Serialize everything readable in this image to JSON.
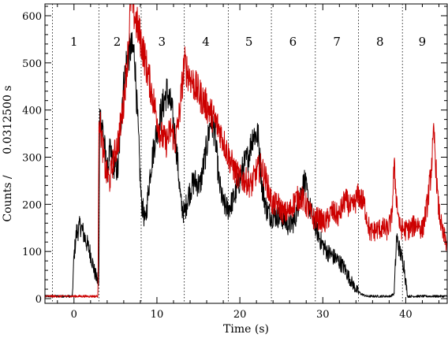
{
  "chart_data": {
    "type": "line",
    "title": "",
    "xlabel": "Time (s)",
    "ylabel": "Counts /      0.0312500 s",
    "xlim": [
      -3.5,
      45
    ],
    "ylim": [
      -10,
      625
    ],
    "x_ticks": [
      0,
      10,
      20,
      30,
      40
    ],
    "x_tick_labels": [
      "0",
      "10",
      "20",
      "30",
      "40"
    ],
    "y_ticks": [
      0,
      100,
      200,
      300,
      400,
      500,
      600
    ],
    "y_tick_labels": [
      "0",
      "100",
      "200",
      "300",
      "400",
      "500",
      "600"
    ],
    "grid": false,
    "segment_boundaries": [
      -2.6,
      3.0,
      8.1,
      13.3,
      18.6,
      23.8,
      29.1,
      34.3,
      39.6
    ],
    "segment_labels": [
      {
        "x": 0.0,
        "label": "1"
      },
      {
        "x": 5.2,
        "label": "2"
      },
      {
        "x": 10.6,
        "label": "3"
      },
      {
        "x": 15.9,
        "label": "4"
      },
      {
        "x": 21.1,
        "label": "5"
      },
      {
        "x": 26.4,
        "label": "6"
      },
      {
        "x": 31.7,
        "label": "7"
      },
      {
        "x": 36.9,
        "label": "8"
      },
      {
        "x": 42.0,
        "label": "9"
      }
    ],
    "series": [
      {
        "color": "#000000",
        "x": [
          -3.5,
          -0.2,
          0.0,
          0.3,
          0.8,
          1.4,
          2.0,
          2.5,
          3.0,
          3.1,
          3.5,
          4.0,
          4.3,
          4.8,
          5.3,
          5.8,
          6.3,
          6.8,
          7.3,
          7.8,
          8.1,
          8.6,
          9.2,
          9.8,
          10.5,
          11.2,
          11.8,
          12.4,
          12.9,
          13.3,
          13.8,
          14.5,
          15.2,
          15.9,
          16.5,
          17.0,
          17.5,
          18.0,
          18.6,
          19.2,
          19.8,
          20.4,
          21.0,
          21.6,
          22.2,
          22.7,
          23.2,
          23.8,
          24.5,
          25.2,
          25.9,
          26.6,
          27.2,
          27.8,
          28.4,
          29.1,
          29.8,
          30.5,
          31.2,
          31.9,
          32.6,
          33.3,
          34.0,
          34.6,
          35.3,
          36.0,
          36.7,
          37.4,
          38.1,
          38.6,
          38.9,
          39.3,
          39.8,
          40.2,
          41.0,
          43.0,
          45.0
        ],
        "y": [
          5,
          5,
          90,
          140,
          155,
          125,
          95,
          55,
          30,
          390,
          360,
          260,
          310,
          285,
          270,
          420,
          500,
          530,
          520,
          330,
          210,
          160,
          270,
          340,
          395,
          440,
          400,
          310,
          200,
          180,
          220,
          250,
          240,
          310,
          380,
          350,
          245,
          200,
          190,
          210,
          240,
          280,
          300,
          350,
          345,
          235,
          190,
          175,
          175,
          170,
          155,
          165,
          215,
          250,
          195,
          155,
          120,
          100,
          90,
          80,
          65,
          40,
          20,
          10,
          5,
          5,
          5,
          5,
          5,
          10,
          130,
          100,
          70,
          5,
          5,
          5,
          5
        ]
      },
      {
        "color": "#cc0000",
        "x": [
          -3.5,
          2.9,
          3.0,
          3.2,
          3.8,
          4.3,
          4.8,
          5.4,
          6.0,
          6.5,
          6.9,
          7.3,
          7.9,
          8.3,
          9.0,
          9.7,
          10.4,
          11.1,
          11.7,
          12.2,
          12.7,
          13.3,
          13.7,
          14.3,
          14.9,
          15.6,
          16.3,
          16.9,
          17.5,
          18.1,
          18.7,
          19.4,
          20.0,
          20.7,
          21.4,
          22.0,
          22.6,
          23.2,
          23.9,
          24.6,
          25.3,
          26.0,
          26.7,
          27.4,
          28.1,
          28.8,
          29.5,
          30.3,
          31.1,
          31.9,
          32.7,
          33.5,
          34.3,
          35.0,
          35.7,
          36.4,
          37.1,
          37.8,
          38.3,
          38.6,
          38.9,
          39.3,
          40.0,
          40.7,
          41.4,
          42.0,
          42.6,
          43.0,
          43.4,
          43.9,
          44.4,
          45.0
        ],
        "y": [
          5,
          5,
          400,
          360,
          270,
          250,
          300,
          340,
          420,
          520,
          650,
          600,
          560,
          530,
          470,
          410,
          350,
          330,
          360,
          330,
          390,
          500,
          480,
          460,
          440,
          420,
          400,
          380,
          360,
          330,
          300,
          270,
          255,
          250,
          240,
          270,
          280,
          250,
          200,
          200,
          180,
          185,
          210,
          215,
          195,
          170,
          170,
          160,
          185,
          175,
          210,
          190,
          220,
          200,
          140,
          145,
          150,
          145,
          170,
          280,
          210,
          150,
          145,
          150,
          160,
          145,
          200,
          260,
          350,
          200,
          140,
          115
        ]
      }
    ]
  }
}
